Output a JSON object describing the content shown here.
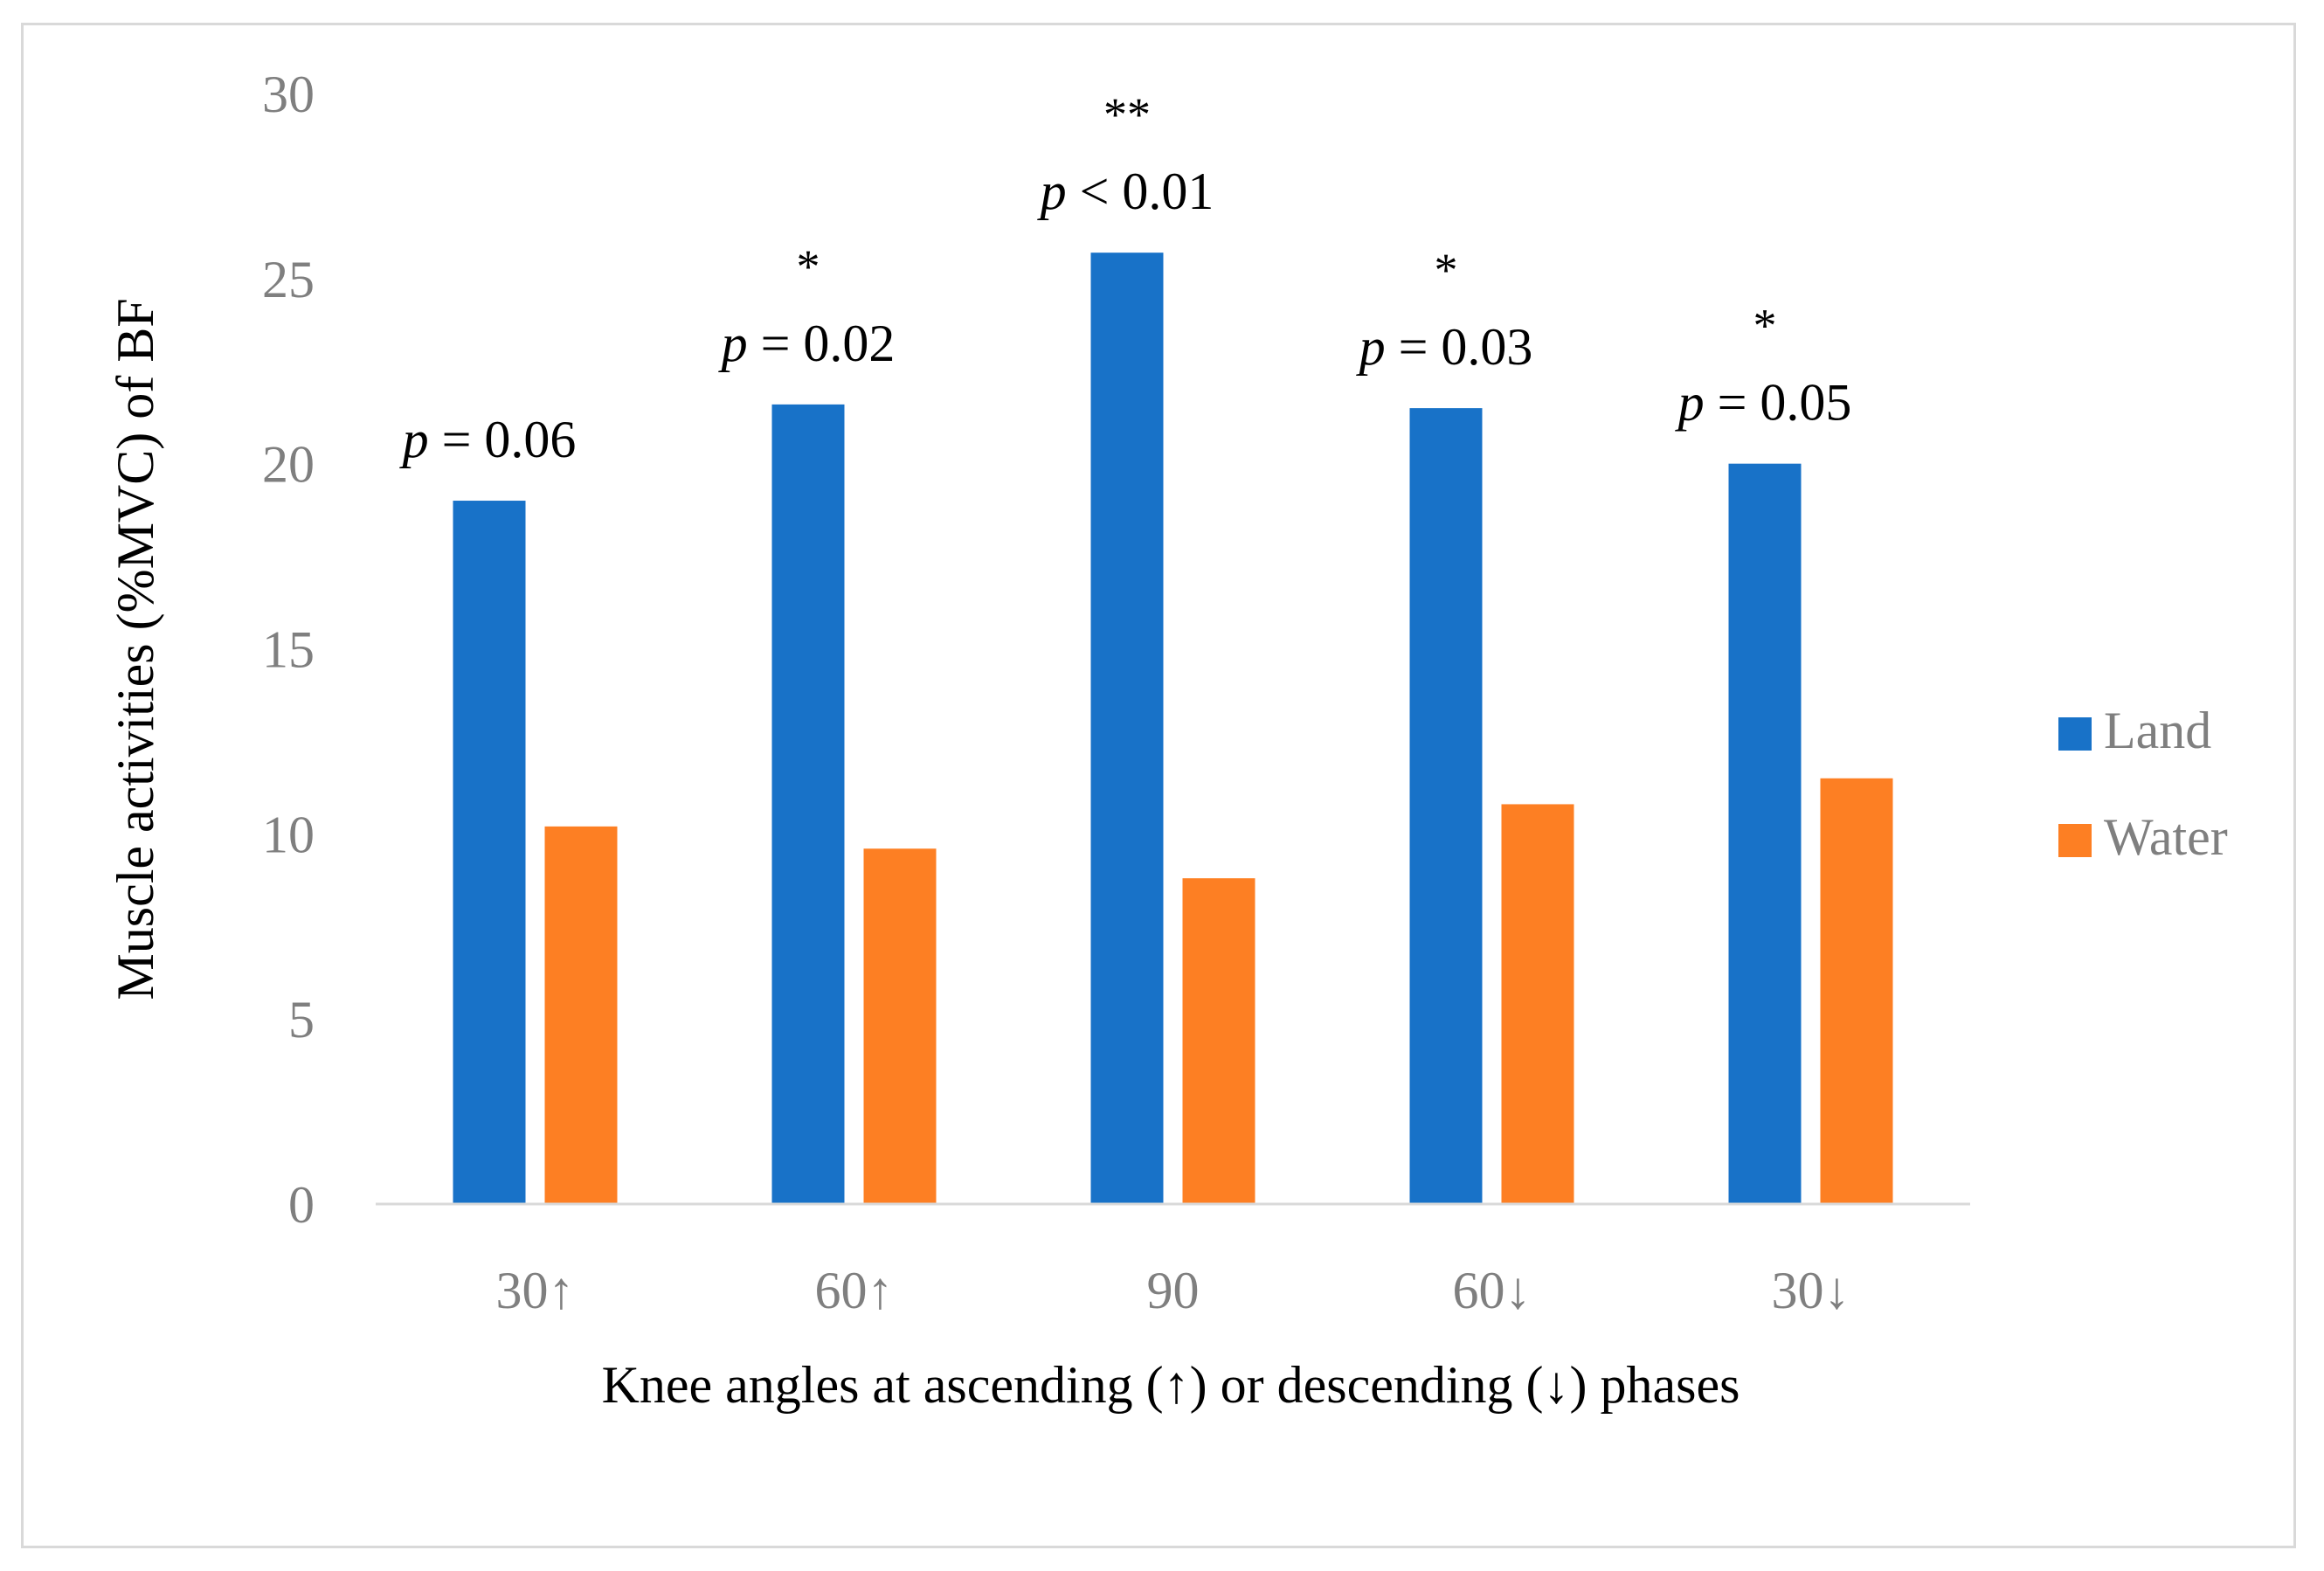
{
  "chart_data": {
    "type": "bar",
    "title": "",
    "xlabel": "Knee angles at ascending (↑) or descending (↓) phases",
    "ylabel": "Muscle activities (%MVC) of BF",
    "ylim": [
      0,
      30
    ],
    "yticks": [
      0,
      5,
      10,
      15,
      20,
      25,
      30
    ],
    "categories": [
      "30↑",
      "60↑",
      "90",
      "60↓",
      "30↓"
    ],
    "series": [
      {
        "name": "Land",
        "color": "#1872c8",
        "values": [
          19.0,
          21.6,
          25.7,
          21.5,
          20.0
        ]
      },
      {
        "name": "Water",
        "color": "#fd7f23",
        "values": [
          10.2,
          9.6,
          8.8,
          10.8,
          11.5
        ]
      }
    ],
    "annotations": [
      {
        "stars": "",
        "p_label": "p",
        "p_text": " = 0.06"
      },
      {
        "stars": "*",
        "p_label": "p",
        "p_text": " = 0.02"
      },
      {
        "stars": "**",
        "p_label": "p",
        "p_text": " < 0.01"
      },
      {
        "stars": "*",
        "p_label": "p",
        "p_text": " = 0.03"
      },
      {
        "stars": "*",
        "p_label": "p",
        "p_text": " = 0.05"
      }
    ],
    "legend": {
      "position": "right",
      "entries": [
        "Land",
        "Water"
      ]
    },
    "grid": false
  }
}
